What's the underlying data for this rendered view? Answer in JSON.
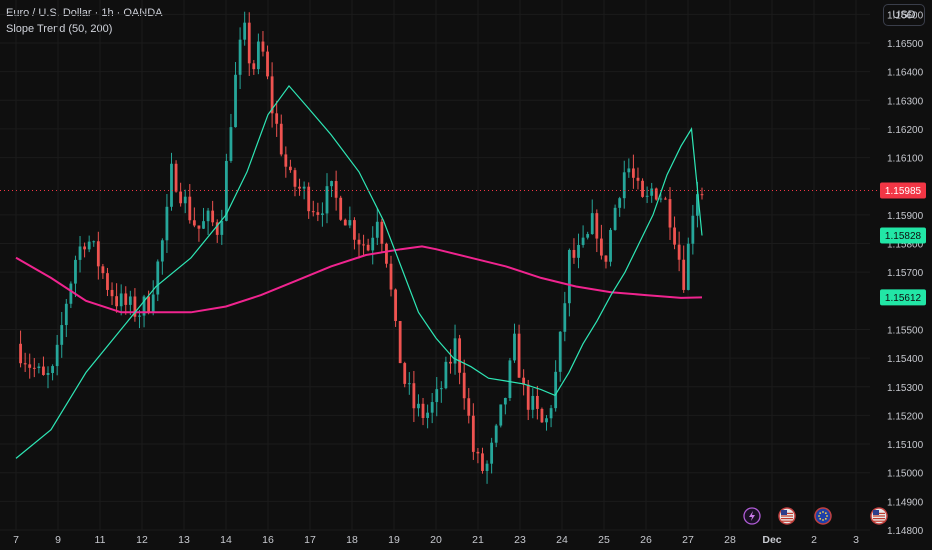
{
  "header": {
    "title": "Euro / U.S. Dollar · 1h · OANDA",
    "indicator": "Slope Trend (50, 200)"
  },
  "currency_button": "USD",
  "colors": {
    "background": "#0f0f0f",
    "up": "#26a69a",
    "down": "#ef5350",
    "teal_line": "#2ee6b5",
    "pink_line": "#f0248f",
    "last_price_tag": "#f23645",
    "teal_tag": "#22e6a6",
    "grid": "#1b1b1b"
  },
  "event_icons": [
    "lightning-icon",
    "us-flag-icon",
    "eu-icon",
    "us-flag-icon"
  ],
  "chart_data": {
    "type": "candlestick",
    "symbol": "Euro / U.S. Dollar",
    "timeframe": "1h",
    "source": "OANDA",
    "y_axis": {
      "min": 1.148,
      "max": 1.1665,
      "ticks": [
        "1.16600",
        "1.16500",
        "1.16400",
        "1.16300",
        "1.16200",
        "1.16100",
        "1.15900",
        "1.15800",
        "1.15700",
        "1.15500",
        "1.15400",
        "1.15300",
        "1.15200",
        "1.15100",
        "1.15000",
        "1.14900",
        "1.14800"
      ]
    },
    "x_axis": {
      "ticks": [
        "7",
        "9",
        "11",
        "12",
        "13",
        "14",
        "16",
        "17",
        "18",
        "19",
        "20",
        "21",
        "23",
        "24",
        "25",
        "26",
        "27",
        "28",
        "Dec",
        "2",
        "3"
      ]
    },
    "price_labels": [
      {
        "value": "1.15985",
        "role": "last-price"
      },
      {
        "value": "1.15828",
        "role": "fast-line"
      },
      {
        "value": "1.15612",
        "role": "slow-line"
      }
    ],
    "price_path": [
      [
        0,
        1.1545
      ],
      [
        0.4,
        1.1538
      ],
      [
        0.8,
        1.1532
      ],
      [
        1.1,
        1.1535
      ],
      [
        1.4,
        1.1558
      ],
      [
        1.7,
        1.1575
      ],
      [
        2.0,
        1.1583
      ],
      [
        2.3,
        1.1575
      ],
      [
        2.6,
        1.1566
      ],
      [
        2.9,
        1.156
      ],
      [
        3.2,
        1.1558
      ],
      [
        3.5,
        1.1556
      ],
      [
        3.8,
        1.156
      ],
      [
        4.1,
        1.1575
      ],
      [
        4.3,
        1.1588
      ],
      [
        4.45,
        1.1605
      ],
      [
        4.6,
        1.1602
      ],
      [
        4.9,
        1.1592
      ],
      [
        5.2,
        1.1585
      ],
      [
        5.5,
        1.1588
      ],
      [
        5.8,
        1.1585
      ],
      [
        5.95,
        1.1598
      ],
      [
        6.1,
        1.162
      ],
      [
        6.3,
        1.164
      ],
      [
        6.5,
        1.1655
      ],
      [
        6.75,
        1.164
      ],
      [
        7.0,
        1.165
      ],
      [
        7.3,
        1.1628
      ],
      [
        7.5,
        1.1618
      ],
      [
        7.8,
        1.1602
      ],
      [
        8.2,
        1.1598
      ],
      [
        8.6,
        1.1592
      ],
      [
        9.0,
        1.1598
      ],
      [
        9.4,
        1.159
      ],
      [
        9.8,
        1.1582
      ],
      [
        10.1,
        1.1578
      ],
      [
        10.3,
        1.1592
      ],
      [
        10.6,
        1.1575
      ],
      [
        10.85,
        1.1548
      ],
      [
        11.1,
        1.1532
      ],
      [
        11.4,
        1.1522
      ],
      [
        11.7,
        1.152
      ],
      [
        12.0,
        1.1525
      ],
      [
        12.3,
        1.1535
      ],
      [
        12.55,
        1.1545
      ],
      [
        12.8,
        1.153
      ],
      [
        13.1,
        1.1505
      ],
      [
        13.4,
        1.15
      ],
      [
        13.7,
        1.1512
      ],
      [
        14.0,
        1.1528
      ],
      [
        14.25,
        1.1545
      ],
      [
        14.5,
        1.1528
      ],
      [
        14.8,
        1.1522
      ],
      [
        15.1,
        1.1515
      ],
      [
        15.35,
        1.1528
      ],
      [
        15.6,
        1.155
      ],
      [
        15.8,
        1.1575
      ],
      [
        16.0,
        1.1575
      ],
      [
        16.3,
        1.158
      ],
      [
        16.55,
        1.159
      ],
      [
        16.75,
        1.157
      ],
      [
        17.0,
        1.1585
      ],
      [
        17.2,
        1.1598
      ],
      [
        17.45,
        1.1608
      ],
      [
        17.7,
        1.16
      ],
      [
        17.95,
        1.1592
      ],
      [
        18.2,
        1.16
      ],
      [
        18.5,
        1.1596
      ],
      [
        18.75,
        1.1588
      ],
      [
        18.95,
        1.1575
      ],
      [
        19.05,
        1.1566
      ],
      [
        19.25,
        1.1582
      ],
      [
        19.4,
        1.16
      ],
      [
        19.6,
        1.15985
      ]
    ],
    "fast_line": [
      [
        0,
        1.1505
      ],
      [
        1.0,
        1.1515
      ],
      [
        2.0,
        1.1535
      ],
      [
        3.0,
        1.155
      ],
      [
        4.0,
        1.1565
      ],
      [
        5.0,
        1.1575
      ],
      [
        6.0,
        1.159
      ],
      [
        6.6,
        1.1605
      ],
      [
        7.2,
        1.1625
      ],
      [
        7.8,
        1.1635
      ],
      [
        8.3,
        1.1628
      ],
      [
        9.0,
        1.1618
      ],
      [
        9.8,
        1.1605
      ],
      [
        10.5,
        1.1588
      ],
      [
        11.0,
        1.1572
      ],
      [
        11.5,
        1.1556
      ],
      [
        12.0,
        1.1547
      ],
      [
        12.5,
        1.154
      ],
      [
        13.0,
        1.1537
      ],
      [
        13.5,
        1.1533
      ],
      [
        14.0,
        1.1532
      ],
      [
        14.5,
        1.1531
      ],
      [
        15.0,
        1.1529
      ],
      [
        15.4,
        1.1527
      ],
      [
        15.8,
        1.1535
      ],
      [
        16.2,
        1.1545
      ],
      [
        16.6,
        1.1553
      ],
      [
        17.0,
        1.1562
      ],
      [
        17.4,
        1.157
      ],
      [
        17.8,
        1.158
      ],
      [
        18.2,
        1.159
      ],
      [
        18.6,
        1.1604
      ],
      [
        19.0,
        1.1614
      ],
      [
        19.3,
        1.162
      ],
      [
        19.6,
        1.15828
      ]
    ],
    "slow_line": [
      [
        0,
        1.1575
      ],
      [
        1.0,
        1.1568
      ],
      [
        2.0,
        1.156
      ],
      [
        3.0,
        1.1556
      ],
      [
        4.0,
        1.1556
      ],
      [
        5.0,
        1.1556
      ],
      [
        6.0,
        1.1558
      ],
      [
        7.0,
        1.1562
      ],
      [
        8.0,
        1.1567
      ],
      [
        9.0,
        1.1572
      ],
      [
        10.0,
        1.1576
      ],
      [
        11.0,
        1.1578
      ],
      [
        11.6,
        1.1579
      ],
      [
        12.0,
        1.1578
      ],
      [
        13.0,
        1.1575
      ],
      [
        14.0,
        1.1572
      ],
      [
        15.0,
        1.1568
      ],
      [
        16.0,
        1.1565
      ],
      [
        17.0,
        1.1563
      ],
      [
        18.0,
        1.1562
      ],
      [
        19.0,
        1.1561
      ],
      [
        19.6,
        1.15612
      ]
    ]
  }
}
